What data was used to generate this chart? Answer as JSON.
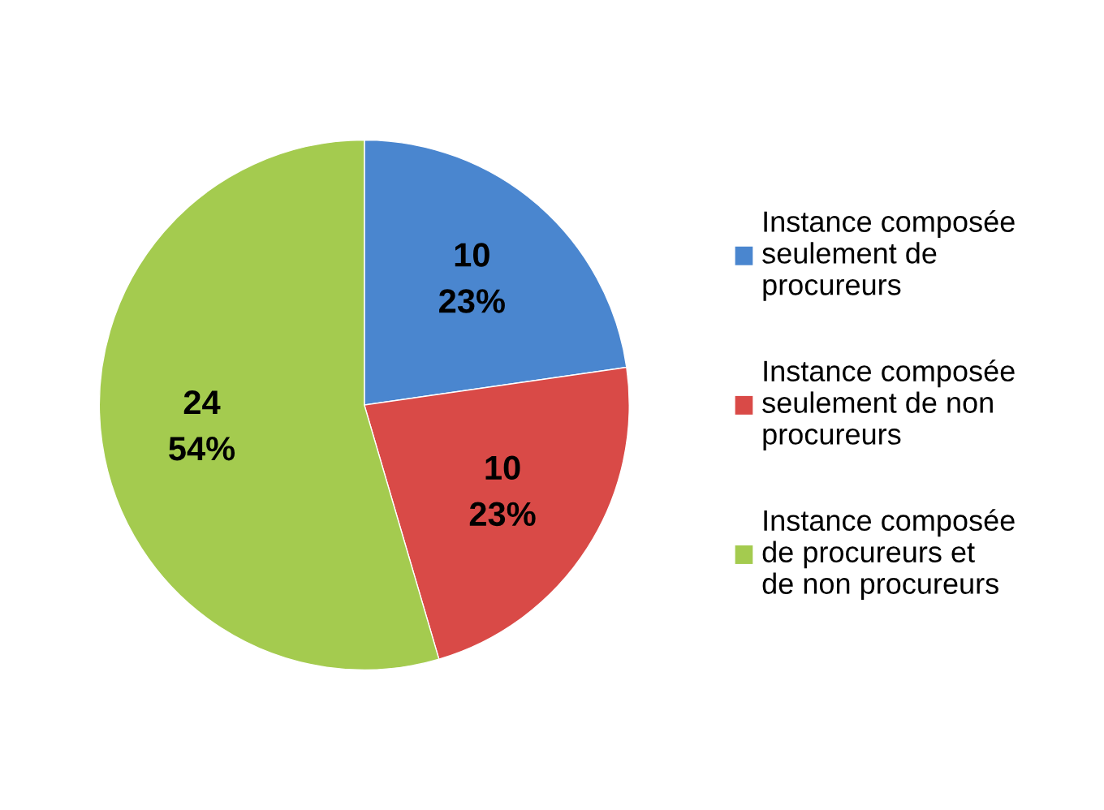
{
  "chart_data": {
    "type": "pie",
    "categories": [
      "Instance composée seulement de procureurs",
      "Instance composée seulement de non procureurs",
      "Instance composée de procureurs et de non procureurs"
    ],
    "values": [
      10,
      10,
      24
    ],
    "colors": [
      "#4a86cf",
      "#d94a47",
      "#a4cb4f"
    ],
    "value_labels": [
      "10\n23%",
      "10\n23%",
      "24\n54%"
    ],
    "legend": "right"
  }
}
